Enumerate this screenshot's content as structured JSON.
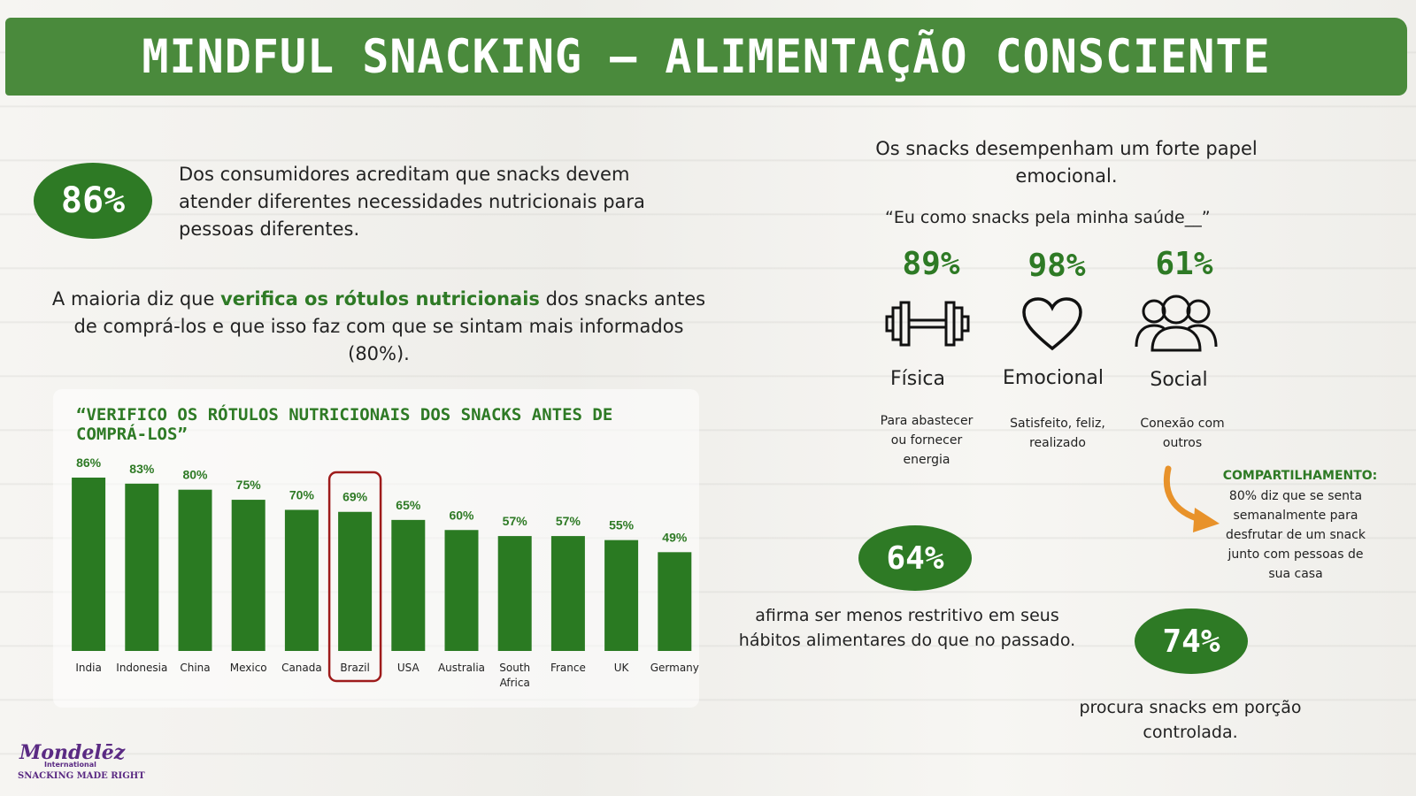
{
  "header": {
    "title": "MINDFUL SNACKING – ALIMENTAÇÃO CONSCIENTE"
  },
  "left": {
    "stat_86": "86%",
    "stat_86_text": "Dos consumidores acreditam que snacks devem atender diferentes necessidades nutricionais para pessoas diferentes.",
    "labels_text_pre": "A maioria diz que ",
    "labels_text_highlight": "verifica os rótulos nutricionais",
    "labels_text_post": " dos snacks antes de comprá-los e que isso faz com que se sintam mais informados (80%)."
  },
  "chart_data": {
    "type": "bar",
    "title": "“VERIFICO OS RÓTULOS NUTRICIONAIS DOS SNACKS ANTES DE COMPRÁ-LOS”",
    "categories": [
      "India",
      "Indonesia",
      "China",
      "Mexico",
      "Canada",
      "Brazil",
      "USA",
      "Australia",
      "South Africa",
      "France",
      "UK",
      "Germany"
    ],
    "values": [
      86,
      83,
      80,
      75,
      70,
      69,
      65,
      60,
      57,
      57,
      55,
      49
    ],
    "value_labels": [
      "86%",
      "83%",
      "80%",
      "75%",
      "70%",
      "69%",
      "65%",
      "60%",
      "57%",
      "57%",
      "55%",
      "49%"
    ],
    "highlighted_category": "Brazil",
    "bar_color": "#2a7a22",
    "highlight_color": "#9e1b1b",
    "ylim": [
      0,
      100
    ],
    "grid": false,
    "legend": "none"
  },
  "right": {
    "intro": "Os snacks desempenham um forte papel emocional.",
    "quote": "“Eu como snacks pela minha saúde__”",
    "items": [
      {
        "pct": "89%",
        "label": "Física",
        "desc": "Para abastecer ou fornecer energia",
        "icon": "dumbbell-icon"
      },
      {
        "pct": "98%",
        "label": "Emocional",
        "desc": "Satisfeito, feliz, realizado",
        "icon": "heart-icon"
      },
      {
        "pct": "61%",
        "label": "Social",
        "desc": "Conexão com outros",
        "icon": "people-icon"
      }
    ],
    "sharing_title": "COMPARTILHAMENTO:",
    "sharing_text": "80% diz que se senta semanalmente para desfrutar de um snack junto com pessoas de sua casa",
    "stat_64": "64%",
    "stat_64_text": "afirma ser menos restritivo em seus hábitos alimentares do que no passado.",
    "stat_74": "74%",
    "stat_74_text": "procura snacks em porção controlada."
  },
  "logo": {
    "brand": "Mondelēz",
    "sub": "International",
    "tagline": "SNACKING MADE RIGHT"
  },
  "colors": {
    "banner": "#4a8a3c",
    "accent": "#2e7a25",
    "arrow": "#e8922a"
  }
}
